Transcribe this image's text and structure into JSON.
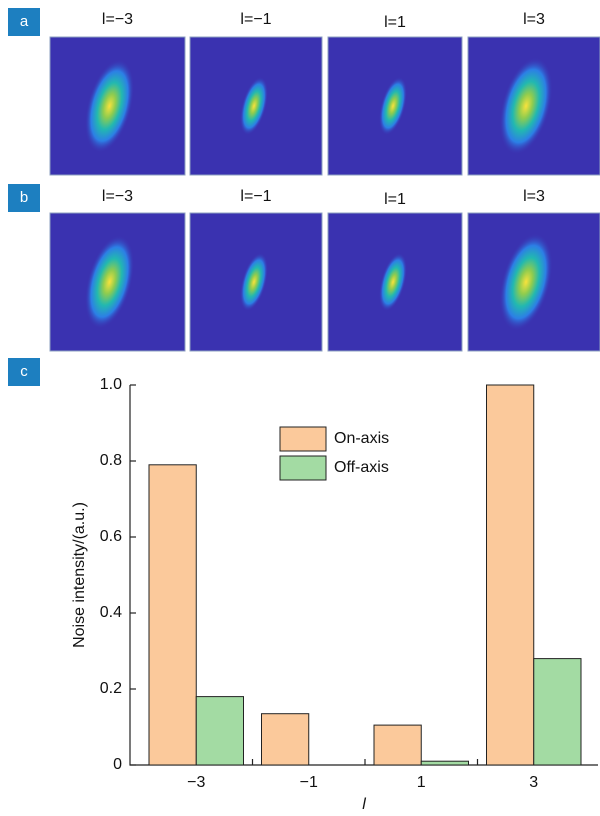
{
  "panels": [
    {
      "label": "a",
      "titles": [
        "l=−3",
        "l=−1",
        "l=1",
        "l=3"
      ]
    },
    {
      "label": "b",
      "titles": [
        "l=−3",
        "l=−1",
        "l=1",
        "l=3"
      ]
    }
  ],
  "chart_data": {
    "type": "bar",
    "panel_label": "c",
    "x_label": "l",
    "y_label": "Noise intensity/(a.u.)",
    "categories": [
      "−3",
      "−1",
      "1",
      "3"
    ],
    "series": [
      {
        "name": "On-axis",
        "color": "#fbc99b",
        "values": [
          0.79,
          0.135,
          0.105,
          1.0
        ]
      },
      {
        "name": "Off-axis",
        "color": "#a3dba3",
        "values": [
          0.18,
          0.0,
          0.01,
          0.28
        ]
      }
    ],
    "ylim": [
      0,
      1
    ],
    "yticks": [
      0,
      0.2,
      0.4,
      0.6,
      0.8,
      {
        "value": 1,
        "label": "1.0"
      }
    ],
    "legend": "upper center"
  }
}
